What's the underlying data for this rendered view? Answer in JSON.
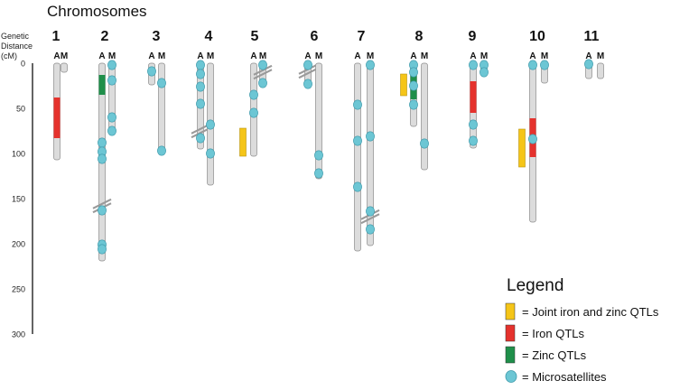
{
  "title": "Chromosomes",
  "axis": {
    "label_lines": [
      "Genetic",
      "Distance",
      "(cM)"
    ],
    "ticks": [
      0,
      50,
      100,
      150,
      200,
      250,
      300
    ],
    "max_cm": 300
  },
  "colors": {
    "chromosome_fill": "#dcdcdc",
    "chromosome_stroke": "#8c8c8c",
    "joint": "#f5c518",
    "iron": "#e5322d",
    "zinc": "#1f8f4a",
    "microsatellite": "#6cc6d4",
    "microsatellite_stroke": "#3e9aab",
    "break_mark": "#9a9a9a"
  },
  "chart_data": {
    "type": "genetic-linkage-map",
    "units": "cM",
    "chromosomes": [
      {
        "number": "1",
        "A": {
          "length": 107,
          "qtls": [
            {
              "type": "iron",
              "start": 38,
              "end": 83
            }
          ],
          "markers": []
        },
        "M": {
          "length": 10,
          "qtls": [],
          "markers": []
        }
      },
      {
        "number": "2",
        "A": {
          "length": 219,
          "break_at": 158,
          "qtls": [
            {
              "type": "zinc",
              "start": 13,
              "end": 35
            }
          ],
          "markers": [
            88,
            98,
            106,
            163,
            201,
            206
          ]
        },
        "M": {
          "length": 78,
          "qtls": [],
          "markers": [
            2,
            19,
            60,
            75
          ]
        }
      },
      {
        "number": "3",
        "A": {
          "length": 24,
          "qtls": [],
          "markers": [
            9
          ]
        },
        "M": {
          "length": 97,
          "qtls": [],
          "markers": [
            22,
            97
          ]
        }
      },
      {
        "number": "4",
        "A": {
          "length": 95,
          "break_at": 75,
          "qtls": [],
          "markers": [
            2,
            12,
            26,
            45,
            83
          ]
        },
        "M": {
          "length": 135,
          "qtls": [],
          "markers": [
            68,
            100
          ]
        }
      },
      {
        "number": "5",
        "J": {
          "start": 72,
          "end": 103
        },
        "A": {
          "length": 103,
          "qtls": [],
          "markers": [
            35,
            55
          ]
        },
        "M": {
          "length": 22,
          "break_at": 10,
          "qtls": [],
          "markers": [
            2,
            22
          ]
        }
      },
      {
        "number": "6",
        "A": {
          "length": 27,
          "break_at": 9,
          "qtls": [],
          "markers": [
            2,
            23
          ]
        },
        "M": {
          "length": 128,
          "qtls": [],
          "markers": [
            102,
            122
          ]
        }
      },
      {
        "number": "7",
        "A": {
          "length": 208,
          "qtls": [],
          "markers": [
            46,
            86,
            137
          ]
        },
        "M": {
          "length": 202,
          "break_at": 170,
          "qtls": [],
          "markers": [
            2,
            81,
            164,
            184
          ]
        }
      },
      {
        "number": "8",
        "J": {
          "start": 12,
          "end": 36
        },
        "A": {
          "length": 70,
          "qtls": [
            {
              "type": "zinc",
              "start": 12,
              "end": 40
            }
          ],
          "markers": [
            2,
            10,
            25,
            46
          ]
        },
        "M": {
          "length": 118,
          "qtls": [],
          "markers": [
            89
          ]
        }
      },
      {
        "number": "9",
        "A": {
          "length": 94,
          "qtls": [
            {
              "type": "iron",
              "start": 20,
              "end": 55
            }
          ],
          "markers": [
            2,
            68,
            86
          ]
        },
        "M": {
          "length": 13,
          "qtls": [],
          "markers": [
            2,
            10
          ]
        }
      },
      {
        "number": "10",
        "J": {
          "start": 73,
          "end": 115
        },
        "A": {
          "length": 176,
          "qtls": [
            {
              "type": "iron",
              "start": 61,
              "end": 104
            }
          ],
          "markers": [
            2,
            84
          ]
        },
        "M": {
          "length": 22,
          "qtls": [],
          "markers": [
            2
          ]
        }
      },
      {
        "number": "11",
        "A": {
          "length": 17,
          "qtls": [],
          "markers": [
            1
          ]
        },
        "M": {
          "length": 17,
          "qtls": [],
          "markers": []
        }
      }
    ]
  },
  "legend": {
    "title": "Legend",
    "items": [
      {
        "type": "joint",
        "label": "= Joint iron and zinc QTLs"
      },
      {
        "type": "iron",
        "label": "= Iron QTLs"
      },
      {
        "type": "zinc",
        "label": "= Zinc QTLs"
      },
      {
        "type": "microsatellite",
        "label": "= Microsatellites"
      }
    ]
  }
}
